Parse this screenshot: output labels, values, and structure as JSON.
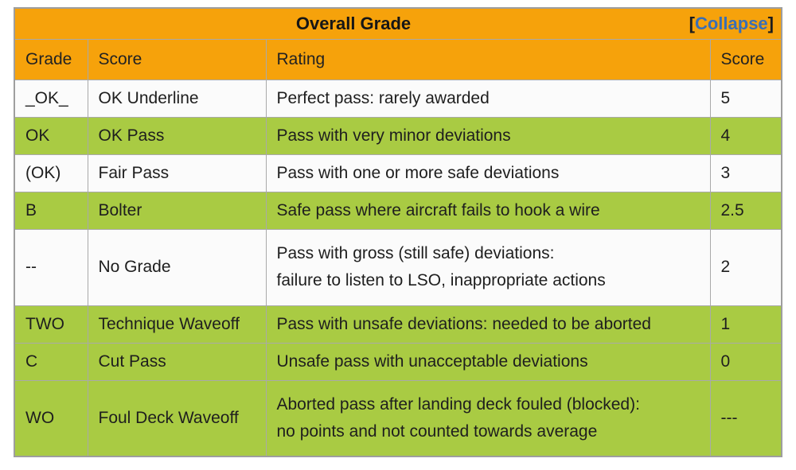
{
  "title": {
    "text": "Overall Grade",
    "collapse": {
      "bracket_open": "[",
      "label": "Collapse",
      "bracket_close": "]"
    }
  },
  "columns": {
    "grade": "Grade",
    "name": "Score",
    "rating": "Rating",
    "score": "Score"
  },
  "rows": [
    {
      "grade": "_OK_",
      "name": "OK Underline",
      "rating": "Perfect pass: rarely awarded",
      "score": "5",
      "bg": "white"
    },
    {
      "grade": "OK",
      "name": "OK Pass",
      "rating": "Pass with very minor deviations",
      "score": "4",
      "bg": "green"
    },
    {
      "grade": "(OK)",
      "name": "Fair Pass",
      "rating": "Pass with one or more safe deviations",
      "score": "3",
      "bg": "white"
    },
    {
      "grade": "B",
      "name": "Bolter",
      "rating": "Safe pass where aircraft fails to hook a wire",
      "score": "2.5",
      "bg": "green"
    },
    {
      "grade": "--",
      "name": "No Grade",
      "rating": "Pass with gross (still safe) deviations:\nfailure to listen to LSO, inappropriate actions",
      "score": "2",
      "bg": "white"
    },
    {
      "grade": "TWO",
      "name": "Technique Waveoff",
      "rating": "Pass with unsafe deviations: needed to be aborted",
      "score": "1",
      "bg": "green"
    },
    {
      "grade": "C",
      "name": "Cut Pass",
      "rating": "Unsafe pass with unacceptable deviations",
      "score": "0",
      "bg": "green"
    },
    {
      "grade": "WO",
      "name": "Foul Deck Waveoff",
      "rating": "Aborted pass after landing deck fouled (blocked):\nno points and not counted towards average",
      "score": "---",
      "bg": "green"
    }
  ],
  "colors": {
    "header_orange": "#f6a20b",
    "row_green": "#a9cb43",
    "row_white": "#fbfbfb",
    "link_blue": "#3a6eb5",
    "border_gray": "#a9a9a9",
    "text": "#1e1e1e"
  }
}
